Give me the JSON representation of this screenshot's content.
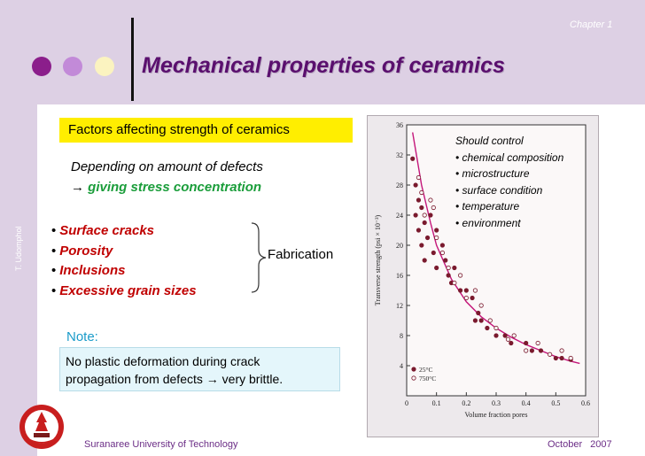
{
  "header": {
    "chapter": "Chapter 1",
    "title": "Mechanical properties of ceramics",
    "dot_colors": [
      "#8b1e8b",
      "#c28ad8",
      "#fbf3c0"
    ]
  },
  "sidebar": {
    "author": "T. Udomphol"
  },
  "content": {
    "factors_heading": "Factors affecting strength of ceramics",
    "depending_line": "Depending on amount of defects",
    "arrow": "→",
    "stress_line": "giving stress concentration",
    "defects": [
      {
        "bullet": "•",
        "label": "Surface cracks"
      },
      {
        "bullet": "•",
        "label": "Porosity"
      },
      {
        "bullet": "•",
        "label": "Inclusions"
      },
      {
        "bullet": "•",
        "label": "Excessive grain sizes"
      }
    ],
    "fabrication": "Fabrication",
    "note_label": "Note:",
    "note_line1": "No plastic deformation during crack",
    "note_line2_a": "propagation from defects ",
    "note_arrow": "→",
    "note_line2_b": " very brittle."
  },
  "control": {
    "heading": "Should control",
    "items": [
      "• chemical composition",
      "• microstructure",
      "• surface condition",
      "• temperature",
      "• environment"
    ]
  },
  "chart_data": {
    "type": "scatter",
    "xlabel": "Volume fraction pores",
    "ylabel": "Transverse strength (psi × 10⁻³)",
    "xlim": [
      0,
      0.6
    ],
    "ylim": [
      0,
      36
    ],
    "x_ticks": [
      "0",
      "0.1",
      "0.2",
      "0.3",
      "0.4",
      "0.5",
      "0.6"
    ],
    "y_ticks": [
      "4",
      "8",
      "12",
      "16",
      "20",
      "24",
      "28",
      "32",
      "36"
    ],
    "legend_position": "bottom-left",
    "series": [
      {
        "name": "25°C",
        "marker": "filled-circle",
        "color": "#7a1a2e",
        "points": [
          [
            0.02,
            31.5
          ],
          [
            0.03,
            28
          ],
          [
            0.03,
            24
          ],
          [
            0.04,
            26
          ],
          [
            0.04,
            22
          ],
          [
            0.05,
            25
          ],
          [
            0.05,
            20
          ],
          [
            0.06,
            18
          ],
          [
            0.06,
            23
          ],
          [
            0.07,
            21
          ],
          [
            0.08,
            24
          ],
          [
            0.09,
            19
          ],
          [
            0.1,
            22
          ],
          [
            0.1,
            17
          ],
          [
            0.12,
            20
          ],
          [
            0.13,
            18
          ],
          [
            0.14,
            16
          ],
          [
            0.15,
            15
          ],
          [
            0.16,
            17
          ],
          [
            0.18,
            14
          ],
          [
            0.2,
            14
          ],
          [
            0.22,
            13
          ],
          [
            0.23,
            10
          ],
          [
            0.24,
            11
          ],
          [
            0.25,
            10
          ],
          [
            0.27,
            9
          ],
          [
            0.3,
            8
          ],
          [
            0.33,
            8
          ],
          [
            0.35,
            7
          ],
          [
            0.4,
            7
          ],
          [
            0.42,
            6
          ],
          [
            0.45,
            6
          ],
          [
            0.5,
            5
          ],
          [
            0.52,
            5
          ],
          [
            0.55,
            4.8
          ]
        ]
      },
      {
        "name": "750°C",
        "marker": "open-circle",
        "color": "#7a1a2e",
        "points": [
          [
            0.04,
            29
          ],
          [
            0.05,
            27
          ],
          [
            0.06,
            24
          ],
          [
            0.08,
            26
          ],
          [
            0.09,
            25
          ],
          [
            0.1,
            21
          ],
          [
            0.12,
            19
          ],
          [
            0.14,
            17
          ],
          [
            0.16,
            15
          ],
          [
            0.18,
            16
          ],
          [
            0.2,
            13
          ],
          [
            0.23,
            14
          ],
          [
            0.25,
            12
          ],
          [
            0.28,
            10
          ],
          [
            0.3,
            9
          ],
          [
            0.34,
            7.5
          ],
          [
            0.36,
            8
          ],
          [
            0.4,
            6
          ],
          [
            0.44,
            7
          ],
          [
            0.48,
            5.5
          ],
          [
            0.52,
            6
          ],
          [
            0.55,
            5
          ]
        ]
      }
    ],
    "fit_curve": [
      [
        0.02,
        35
      ],
      [
        0.05,
        28
      ],
      [
        0.08,
        23
      ],
      [
        0.1,
        20
      ],
      [
        0.15,
        15.5
      ],
      [
        0.2,
        12.5
      ],
      [
        0.25,
        10.5
      ],
      [
        0.3,
        9
      ],
      [
        0.35,
        7.8
      ],
      [
        0.4,
        6.8
      ],
      [
        0.45,
        6
      ],
      [
        0.5,
        5.2
      ],
      [
        0.55,
        4.6
      ],
      [
        0.58,
        4.3
      ]
    ]
  },
  "footer": {
    "university": "Suranaree University of Technology",
    "date": "October 2007"
  }
}
